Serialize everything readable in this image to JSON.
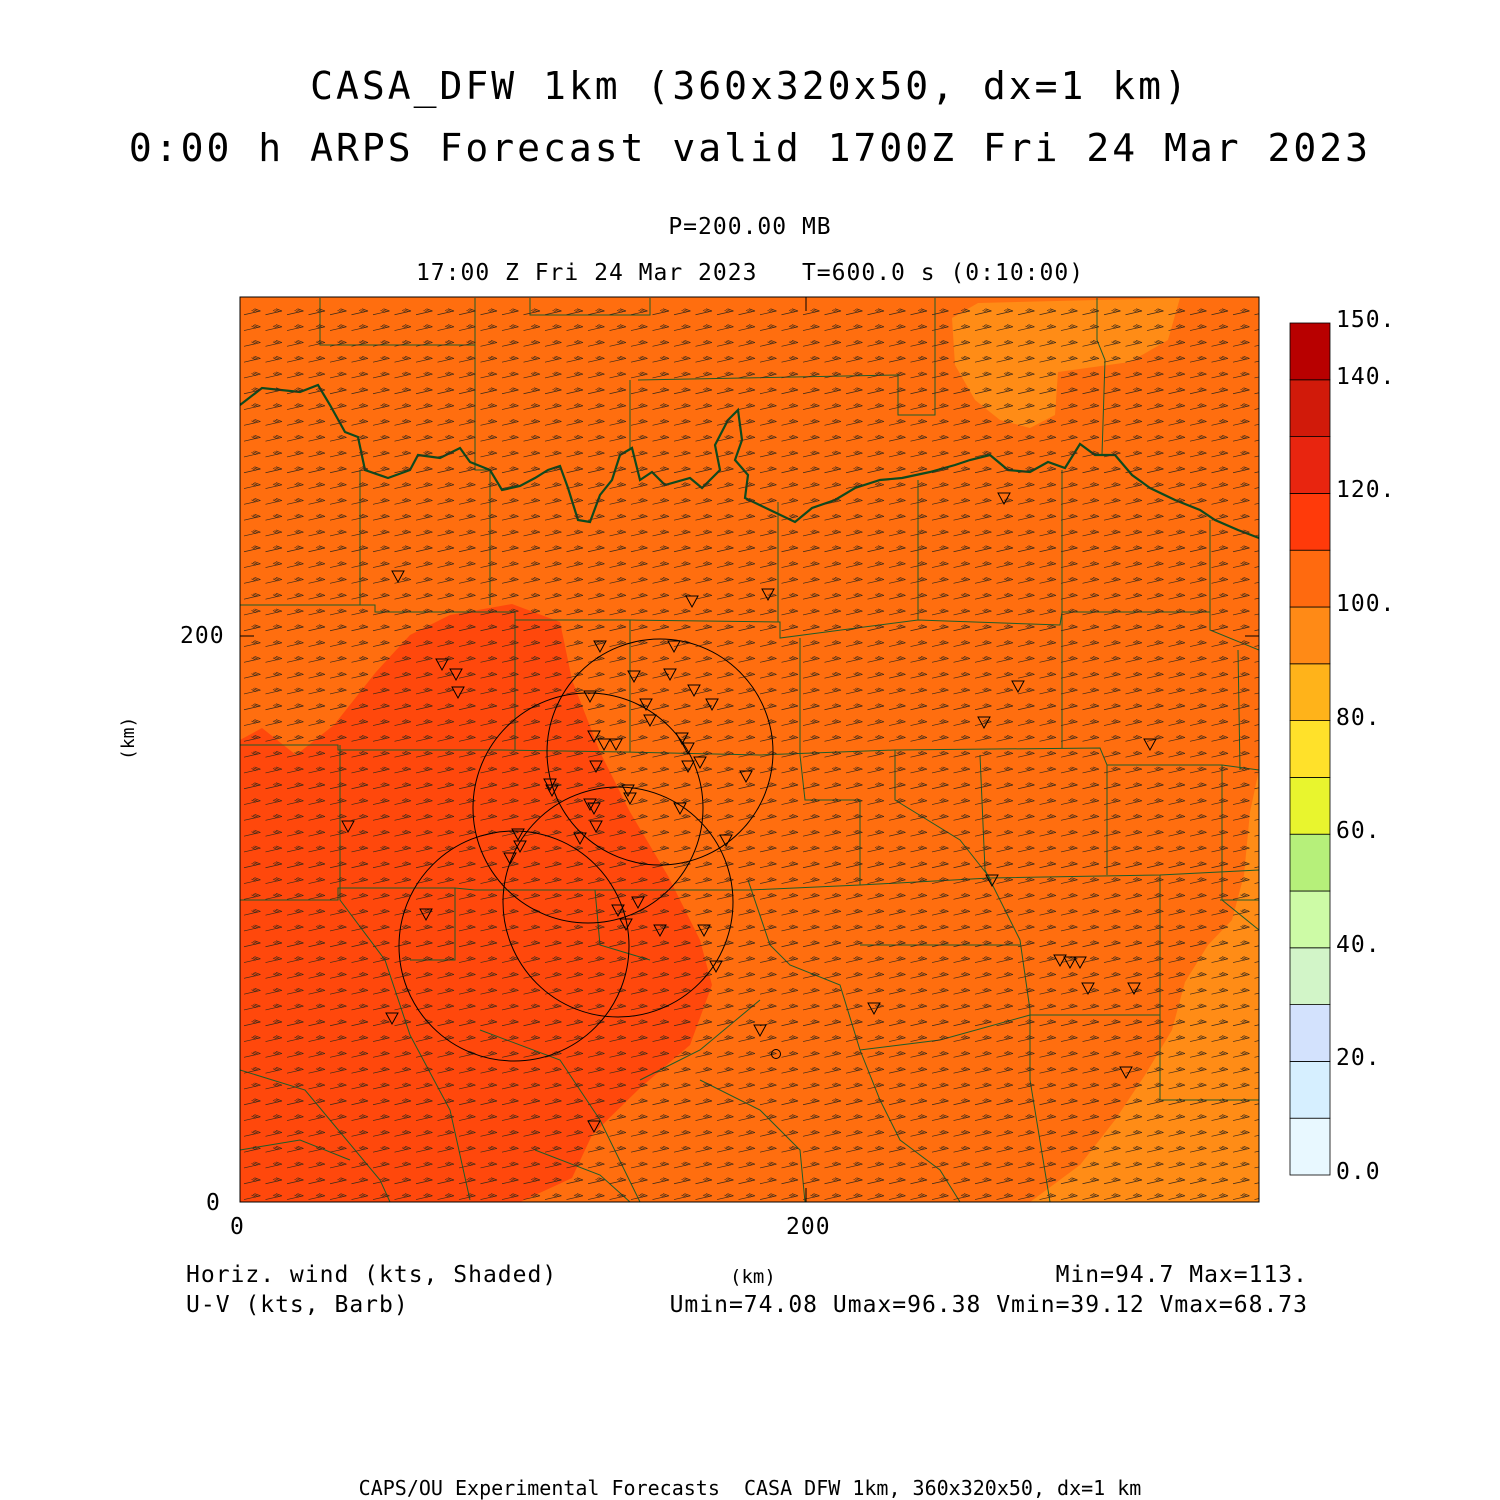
{
  "header": {
    "title_line1": "CASA_DFW 1km (360x320x50, dx=1 km)",
    "title_line2": "0:00 h ARPS Forecast valid 1700Z Fri 24 Mar 2023",
    "level": "P=200.00 MB",
    "time": "17:00 Z Fri 24 Mar 2023   T=600.0 s (0:10:00)"
  },
  "axes": {
    "x_label": "(km)",
    "y_label": "(km)",
    "x_ticks": [
      "0",
      "200"
    ],
    "y_ticks": [
      "0",
      "200"
    ],
    "x_range": [
      0,
      360
    ],
    "y_range": [
      0,
      320
    ]
  },
  "colorbar": {
    "labels": [
      "0.0",
      "20.",
      "40.",
      "60.",
      "80.",
      "100.",
      "120.",
      "140.",
      "150."
    ],
    "colors": [
      "#e8f8ff",
      "#d6efff",
      "#d3e2fd",
      "#d2f5c8",
      "#cdfba6",
      "#b6f07a",
      "#e8f52e",
      "#ffe12a",
      "#ffb31a",
      "#ff8a16",
      "#ff6a0f",
      "#ff3a0a",
      "#e8250f",
      "#d11a0a",
      "#b80000"
    ]
  },
  "footer": {
    "field_label": "Horiz. wind (kts, Shaded)",
    "vector_label": "U-V (kts, Barb)",
    "x_unit": "(km)",
    "minmax": "Min=94.7 Max=113.",
    "uv_stats": "Umin=74.08 Umax=96.38 Vmin=39.12 Vmax=68.73",
    "credit": "CAPS/OU Experimental Forecasts  CASA DFW 1km, 360x320x50, dx=1 km"
  },
  "map_colors": {
    "base": "#ff6e0f",
    "high": "#ff480c",
    "low": "#ff8c16",
    "boundary": "#1e5c2a",
    "river": "#0e4a1e"
  }
}
